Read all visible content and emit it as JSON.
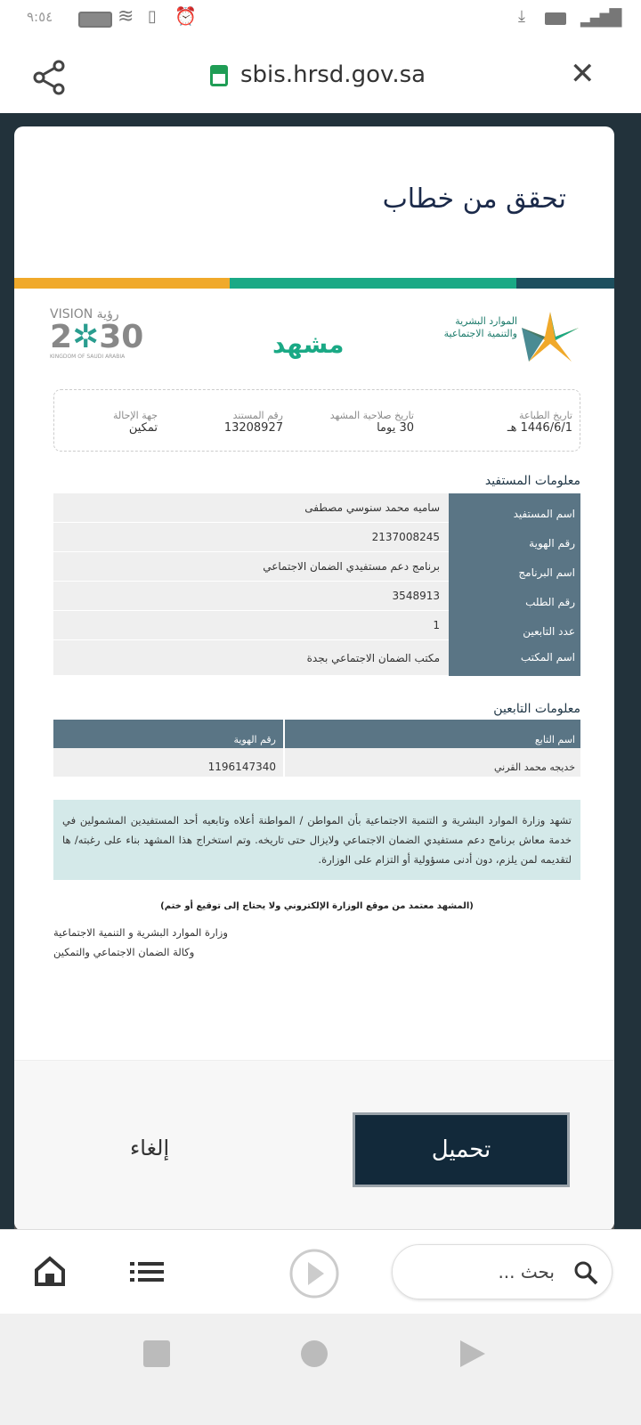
{
  "status_bar": {
    "time": "٩:٥٤"
  },
  "browser": {
    "url": "sbis.hrsd.gov.sa"
  },
  "page": {
    "title": "تحقق من خطاب",
    "colors": {
      "orange": "#f0a92a",
      "green": "#1aa985",
      "teal": "#1d4f5e",
      "header_cell": "#5a7585"
    },
    "logos": {
      "ministry": "الموارد البشرية والتنمية الاجتماعية",
      "mashhad": "مشهد",
      "vision": "VISION رؤية 2030 المملكة العربية السعودية KINGDOM OF SAUDI ARABIA"
    },
    "meta": [
      {
        "label": "تاريخ الطباعة",
        "value": "1446/6/1 هـ"
      },
      {
        "label": "تاريخ صلاحية المشهد",
        "value": "30 يوما"
      },
      {
        "label": "رقم المستند",
        "value": "13208927"
      },
      {
        "label": "جهة الإحالة",
        "value": "تمكين"
      }
    ],
    "beneficiary": {
      "heading": "معلومات المستفيد",
      "rows": [
        {
          "label": "اسم المستفيد",
          "value": "ساميه محمد سنوسي مصطفى"
        },
        {
          "label": "رقم الهوية",
          "value": "2137008245"
        },
        {
          "label": "اسم البرنامج",
          "value": "برنامج دعم مستفيدي الضمان الاجتماعي"
        },
        {
          "label": "رقم الطلب",
          "value": "3548913"
        },
        {
          "label": "عدد التابعين",
          "value": "1"
        },
        {
          "label": "اسم المكتب",
          "value": "مكتب الضمان الاجتماعي بجدة"
        }
      ]
    },
    "dependents": {
      "heading": "معلومات التابعين",
      "columns": [
        "اسم التابع",
        "رقم الهوية"
      ],
      "rows": [
        [
          "خديجه محمد القرني",
          "1196147340"
        ]
      ]
    },
    "notice": "تشهد وزارة الموارد البشرية و التنمية الاجتماعية بأن المواطن / المواطنة أعلاه وتابعيه أحد المستفيدين المشمولين في خدمة معاش برنامج دعم مستفيدي الضمان الاجتماعي ولايزال حتى تاريخه. وتم استخراج هذا المشهد بناء على رغبته/ ها لتقديمه لمن يلزم، دون أدنى مسؤولية أو التزام على الوزارة.",
    "approval": "(المشهد معتمد من موقع الوزارة الإلكتروني ولا يحتاج إلى توقيع أو ختم)",
    "sign_line1": "وزارة الموارد البشرية و التنمية الاجتماعية",
    "sign_line2": "وكالة الضمان الاجتماعي والتمكين",
    "download_label": "تحميل",
    "cancel_label": "إلغاء"
  },
  "bottom_bar": {
    "search_placeholder": "بحث ..."
  }
}
